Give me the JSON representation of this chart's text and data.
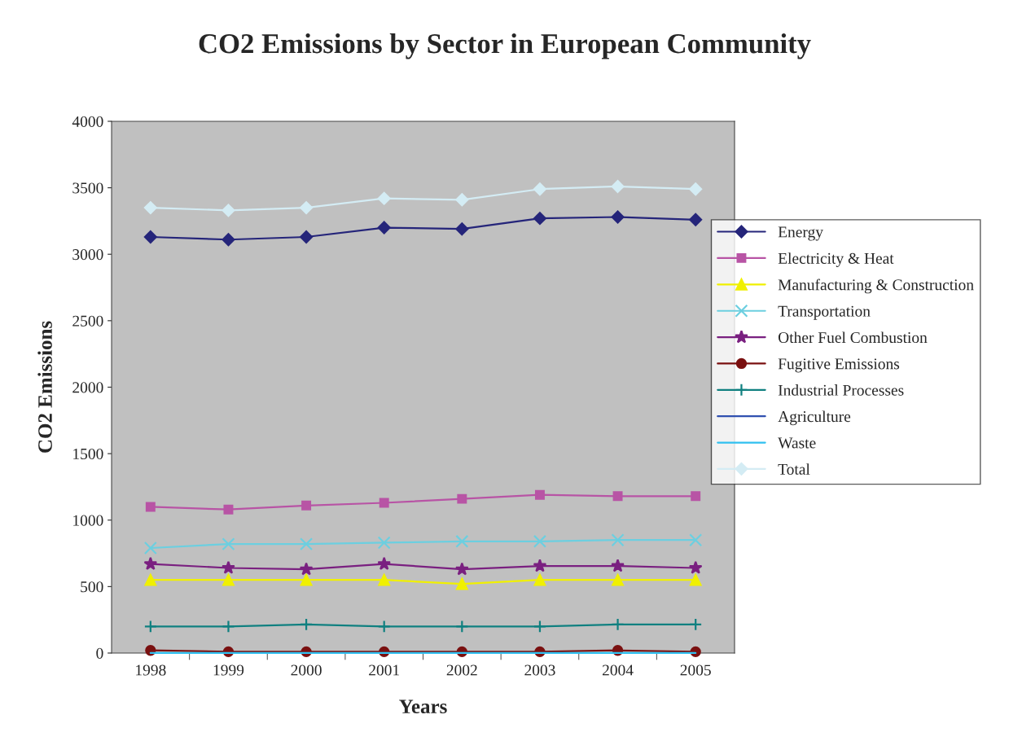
{
  "chart_data": {
    "type": "line",
    "title": "CO2 Emissions by Sector in European Community",
    "xlabel": "Years",
    "ylabel": "CO2 Emissions",
    "categories": [
      "1998",
      "1999",
      "2000",
      "2001",
      "2002",
      "2003",
      "2004",
      "2005"
    ],
    "ylim": [
      0,
      4000
    ],
    "yticks": [
      0,
      500,
      1000,
      1500,
      2000,
      2500,
      3000,
      3500,
      4000
    ],
    "grid": false,
    "legend": "right",
    "series": [
      {
        "name": "Energy",
        "color": "#25257a",
        "marker": "diamond",
        "values": [
          3130,
          3110,
          3130,
          3200,
          3190,
          3270,
          3280,
          3260
        ]
      },
      {
        "name": "Electricity & Heat",
        "color": "#b854a5",
        "marker": "square",
        "values": [
          1100,
          1080,
          1110,
          1130,
          1160,
          1190,
          1180,
          1180
        ]
      },
      {
        "name": "Manufacturing & Construction",
        "color": "#f0f000",
        "marker": "triangle",
        "values": [
          550,
          550,
          550,
          550,
          520,
          550,
          550,
          550
        ]
      },
      {
        "name": "Transportation",
        "color": "#6ccfe0",
        "marker": "cross",
        "values": [
          790,
          820,
          820,
          830,
          840,
          840,
          850,
          850
        ]
      },
      {
        "name": "Other Fuel Combustion",
        "color": "#7a2080",
        "marker": "star",
        "values": [
          670,
          640,
          630,
          670,
          630,
          655,
          655,
          640
        ]
      },
      {
        "name": "Fugitive Emissions",
        "color": "#7a1010",
        "marker": "circle",
        "values": [
          20,
          10,
          10,
          10,
          10,
          10,
          20,
          10
        ]
      },
      {
        "name": "Industrial Processes",
        "color": "#108080",
        "marker": "cross",
        "values": [
          200,
          200,
          215,
          200,
          200,
          200,
          215,
          215
        ]
      },
      {
        "name": "Agriculture",
        "color": "#3050b0",
        "marker": "none",
        "values": [
          null,
          null,
          null,
          null,
          null,
          null,
          null,
          null
        ]
      },
      {
        "name": "Waste",
        "color": "#30c0f0",
        "marker": "none",
        "values": [
          0,
          0,
          0,
          0,
          0,
          0,
          0,
          0
        ]
      },
      {
        "name": "Total",
        "color": "#d4ecf4",
        "marker": "diamond",
        "values": [
          3350,
          3330,
          3350,
          3420,
          3410,
          3490,
          3510,
          3490
        ]
      }
    ]
  }
}
